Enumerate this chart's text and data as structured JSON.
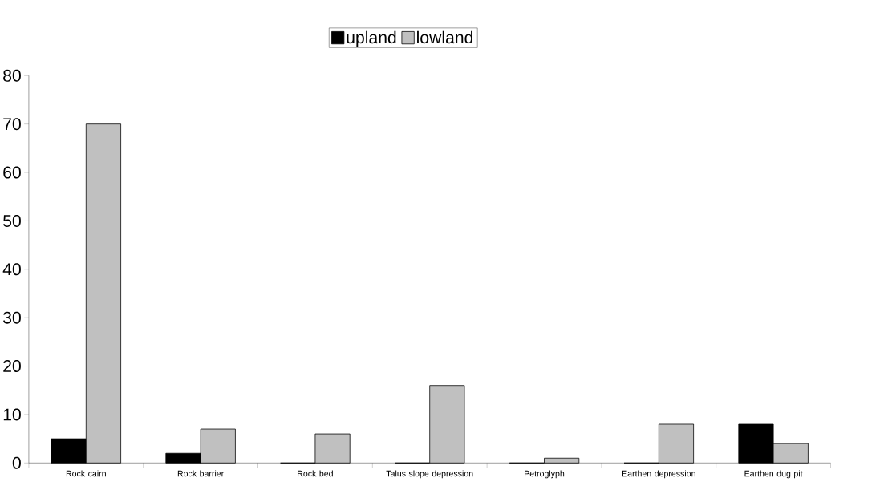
{
  "chart_data": {
    "type": "bar",
    "categories": [
      "Rock cairn",
      "Rock barrier",
      "Rock bed",
      "Talus slope depression",
      "Petroglyph",
      "Earthen depression",
      "Earthen dug pit"
    ],
    "series": [
      {
        "name": "upland",
        "color": "#000000",
        "values": [
          5,
          2,
          0,
          0,
          0,
          0,
          8
        ]
      },
      {
        "name": "lowland",
        "color": "#c0c0c0",
        "values": [
          70,
          7,
          6,
          16,
          1,
          8,
          4
        ]
      }
    ],
    "ylim": [
      0,
      80
    ],
    "yticks": [
      0,
      10,
      20,
      30,
      40,
      50,
      60,
      70,
      80
    ],
    "grid": false,
    "legend": "top"
  }
}
